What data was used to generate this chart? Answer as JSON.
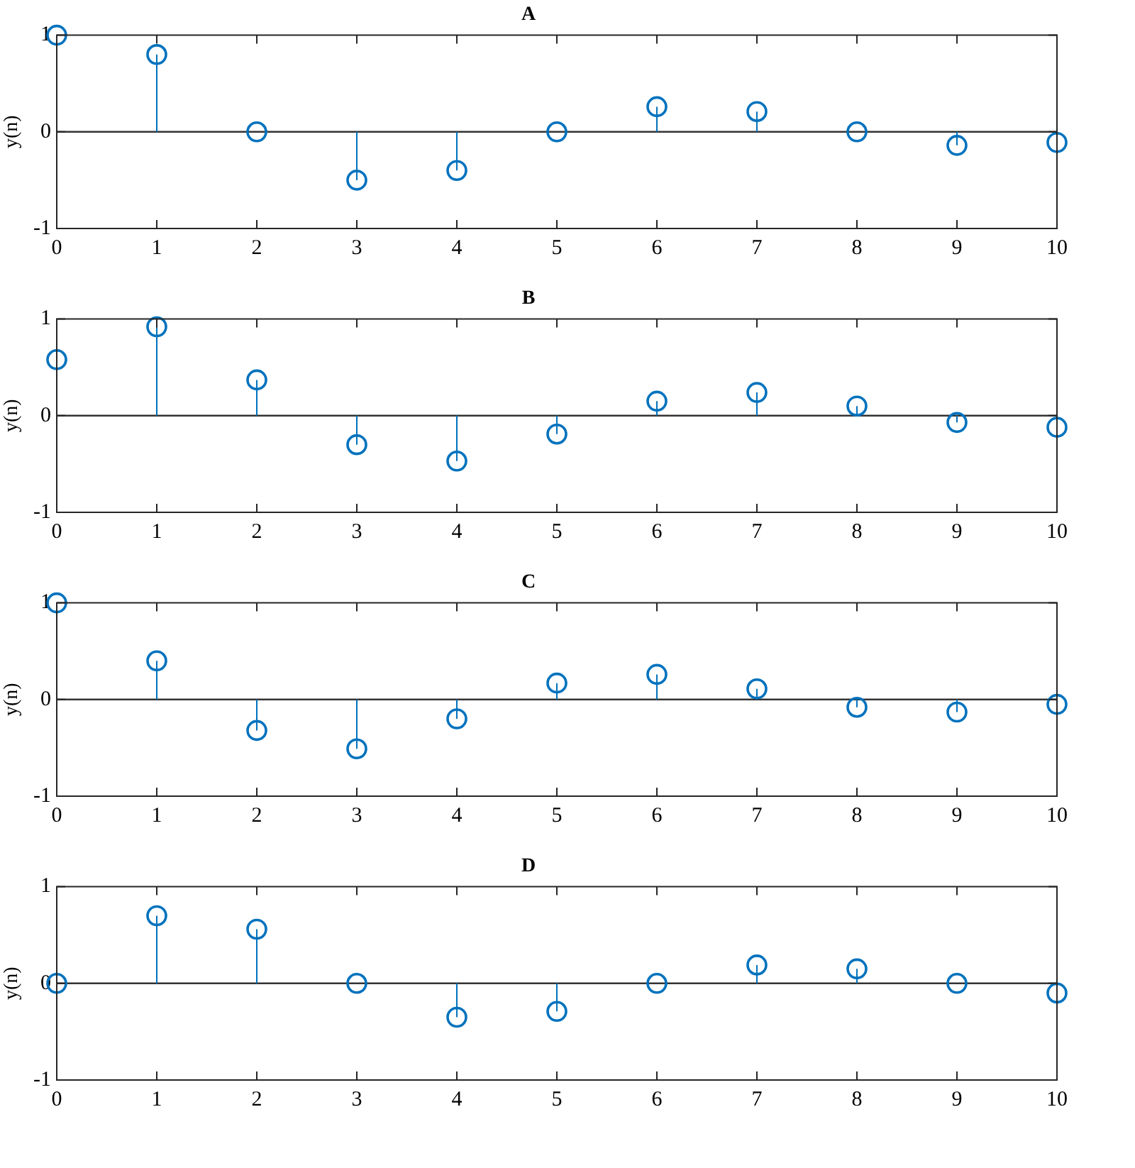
{
  "chart_data": [
    {
      "type": "lollipop",
      "title": "A",
      "ylabel": "y(n)",
      "x": [
        0,
        1,
        2,
        3,
        4,
        5,
        6,
        7,
        8,
        9,
        10
      ],
      "values": [
        1,
        0.8,
        0,
        -0.5,
        -0.4,
        0,
        0.26,
        0.21,
        0,
        -0.14,
        -0.11
      ],
      "color": "#0072bd",
      "marker": "circle",
      "xlim": [
        0,
        10
      ],
      "xticks": [
        0,
        1,
        2,
        3,
        4,
        5,
        6,
        7,
        8,
        9,
        10
      ],
      "ylim": [
        -1,
        1
      ],
      "yticks": [
        -1,
        0,
        1
      ],
      "ref_lines": [
        {
          "axis": "y",
          "value": 0,
          "color": "#333333"
        }
      ]
    },
    {
      "type": "lollipop",
      "title": "B",
      "ylabel": "y(n)",
      "x": [
        0,
        1,
        2,
        3,
        4,
        5,
        6,
        7,
        8,
        9,
        10
      ],
      "values": [
        0.58,
        0.92,
        0.37,
        -0.3,
        -0.47,
        -0.19,
        0.15,
        0.24,
        0.1,
        -0.07,
        -0.12
      ],
      "color": "#0072bd",
      "marker": "circle",
      "xlim": [
        0,
        10
      ],
      "xticks": [
        0,
        1,
        2,
        3,
        4,
        5,
        6,
        7,
        8,
        9,
        10
      ],
      "ylim": [
        -1,
        1
      ],
      "yticks": [
        -1,
        0,
        1
      ],
      "ref_lines": [
        {
          "axis": "y",
          "value": 0,
          "color": "#333333"
        }
      ]
    },
    {
      "type": "lollipop",
      "title": "C",
      "ylabel": "y(n)",
      "x": [
        0,
        1,
        2,
        3,
        4,
        5,
        6,
        7,
        8,
        9,
        10
      ],
      "values": [
        1,
        0.4,
        -0.32,
        -0.51,
        -0.2,
        0.17,
        0.26,
        0.11,
        -0.08,
        -0.13,
        -0.05
      ],
      "color": "#0072bd",
      "marker": "circle",
      "xlim": [
        0,
        10
      ],
      "xticks": [
        0,
        1,
        2,
        3,
        4,
        5,
        6,
        7,
        8,
        9,
        10
      ],
      "ylim": [
        -1,
        1
      ],
      "yticks": [
        -1,
        0,
        1
      ],
      "ref_lines": [
        {
          "axis": "y",
          "value": 0,
          "color": "#333333"
        }
      ]
    },
    {
      "type": "lollipop",
      "title": "D",
      "ylabel": "y(n)",
      "x": [
        0,
        1,
        2,
        3,
        4,
        5,
        6,
        7,
        8,
        9,
        10
      ],
      "values": [
        0,
        0.7,
        0.56,
        0,
        -0.35,
        -0.29,
        0,
        0.19,
        0.15,
        0,
        -0.1
      ],
      "color": "#0072bd",
      "marker": "circle",
      "xlim": [
        0,
        10
      ],
      "xticks": [
        0,
        1,
        2,
        3,
        4,
        5,
        6,
        7,
        8,
        9,
        10
      ],
      "ylim": [
        -1,
        1
      ],
      "yticks": [
        -1,
        0,
        1
      ],
      "ref_lines": [
        {
          "axis": "y",
          "value": 0,
          "color": "#333333"
        }
      ]
    }
  ]
}
